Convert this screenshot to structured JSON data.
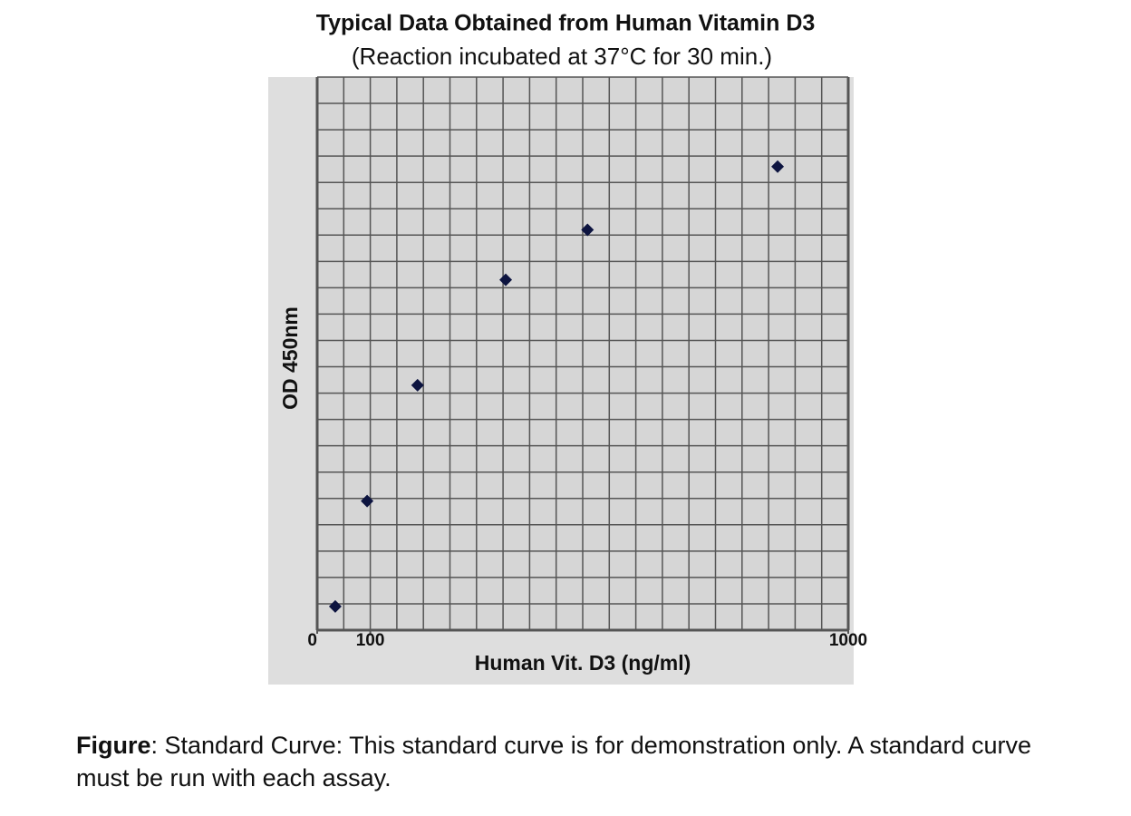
{
  "chart_data": {
    "type": "scatter",
    "title": "Typical Data Obtained from Human Vitamin D3",
    "subtitle": "(Reaction incubated at 37°C for 30 min.)",
    "x_label": "Human Vit. D3 (ng/ml)",
    "y_label": "OD 450nm",
    "x": [
      34,
      94,
      189,
      355,
      509,
      867
    ],
    "values": [
      0.09,
      0.49,
      0.93,
      1.33,
      1.52,
      1.76
    ],
    "color": "#0d1440",
    "xlim": [
      0,
      1000
    ],
    "xticks": [
      0,
      100,
      1000
    ],
    "ylim": [
      0,
      2.1
    ],
    "grid": true
  },
  "caption": {
    "label": "Figure",
    "text": ": Standard Curve: This standard curve is for demonstration only. A standard curve must be run with each assay."
  }
}
